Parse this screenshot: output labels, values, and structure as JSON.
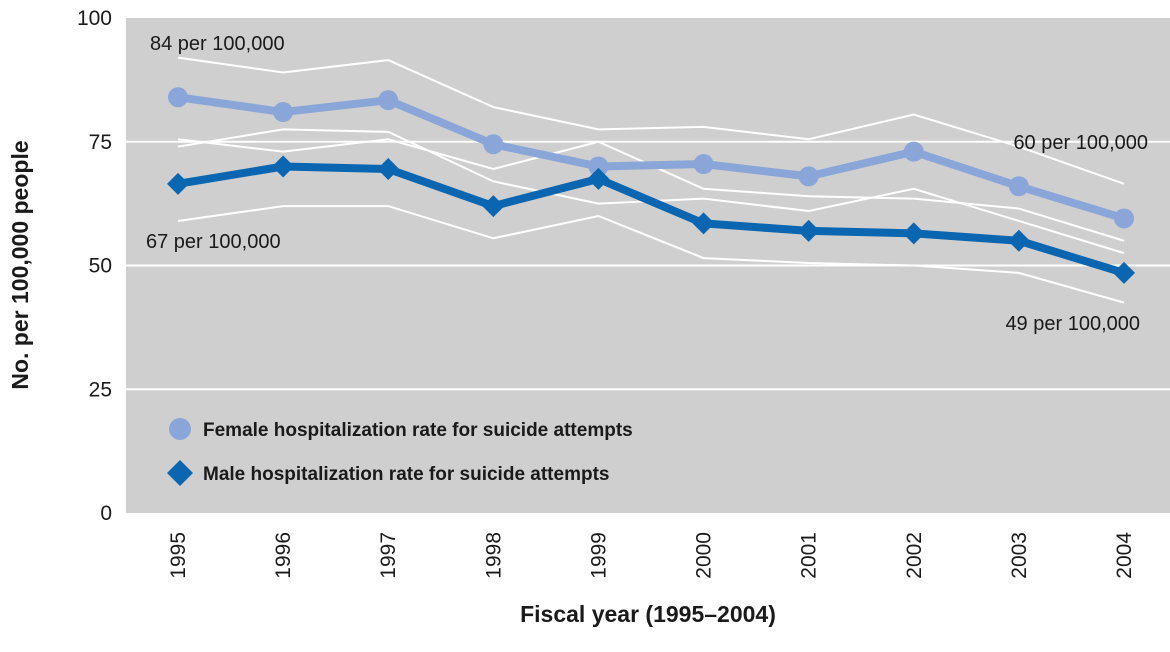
{
  "chart_data": {
    "type": "line",
    "title": "",
    "xlabel": "Fiscal year (1995–2004)",
    "ylabel": "No. per 100,000 people",
    "categories": [
      "1995",
      "1996",
      "1997",
      "1998",
      "1999",
      "2000",
      "2001",
      "2002",
      "2003",
      "2004"
    ],
    "ylim": [
      0,
      100
    ],
    "yticks": [
      0,
      25,
      50,
      75,
      100
    ],
    "grid": true,
    "legend_position": "bottom-left",
    "colors": {
      "plot_bg": "#cfcfcf",
      "female": "#8aa6d8",
      "male": "#0a66b0",
      "ci": "#ffffff",
      "grid": "#ffffff"
    },
    "series": [
      {
        "name": "Female hospitalization rate for suicide attempts",
        "marker": "circle",
        "values": [
          84,
          81,
          83.4,
          74.5,
          70,
          70.5,
          68,
          73,
          66,
          59.5
        ],
        "ci_upper": [
          92,
          89,
          91.5,
          82,
          77.5,
          78,
          75.5,
          80.5,
          74,
          66.5
        ],
        "ci_lower": [
          74,
          77.5,
          77,
          67,
          62.5,
          63.5,
          61,
          65.5,
          59,
          52.5
        ]
      },
      {
        "name": "Male hospitalization rate for suicide attempts",
        "marker": "diamond",
        "values": [
          66.5,
          70,
          69.5,
          62,
          67.5,
          58.5,
          57,
          56.5,
          55,
          48.5
        ],
        "ci_upper": [
          75.5,
          73,
          75.5,
          69.5,
          75,
          65.5,
          64,
          63.5,
          61.5,
          55
        ],
        "ci_lower": [
          59,
          62,
          62,
          55.5,
          60,
          51.5,
          50.5,
          50,
          48.5,
          42.5
        ]
      }
    ],
    "annotations": [
      {
        "text": "84 per 100,000"
      },
      {
        "text": "67 per 100,000"
      },
      {
        "text": "60 per 100,000"
      },
      {
        "text": "49 per 100,000"
      }
    ]
  }
}
